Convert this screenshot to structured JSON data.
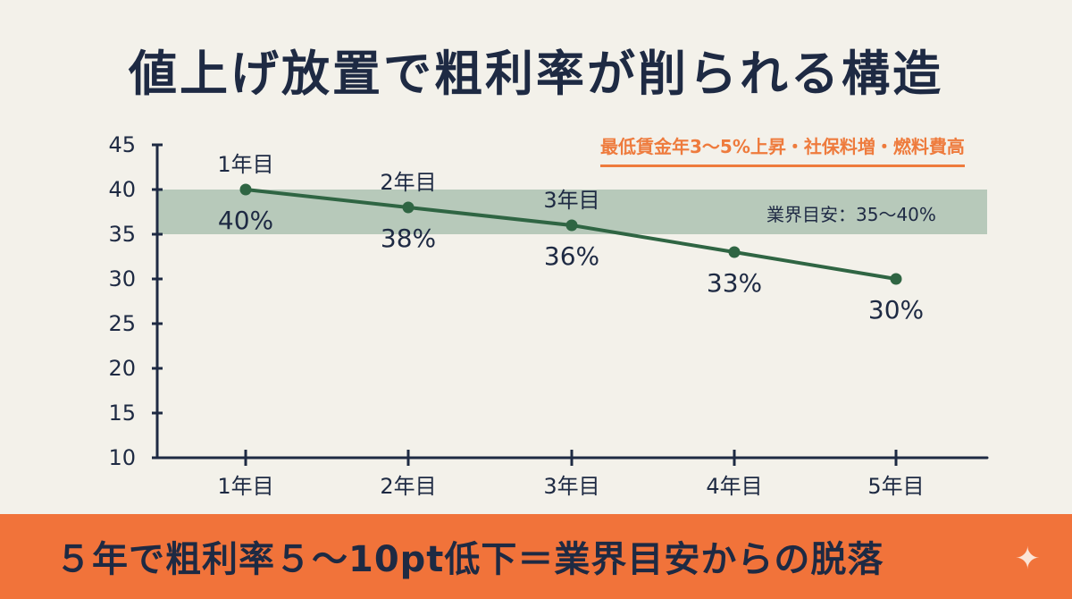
{
  "title": "値上げ放置で粗利率が削られる構造",
  "note": "最低賃金年3～5%上昇・社保料増・燃料費高",
  "footer": "５年で粗利率５～10pt低下＝業界目安からの脱落",
  "chart_data": {
    "type": "line",
    "categories": [
      "1年目",
      "2年目",
      "3年目",
      "4年目",
      "5年目"
    ],
    "values": [
      40,
      38,
      36,
      33,
      30
    ],
    "point_labels": [
      "40%",
      "38%",
      "36%",
      "33%",
      "30%"
    ],
    "point_top_labels": [
      "1年目",
      "2年目",
      "3年目"
    ],
    "ylim": [
      10,
      45
    ],
    "yticks": [
      10,
      15,
      20,
      25,
      30,
      35,
      40,
      45
    ],
    "band": {
      "range": [
        35,
        40
      ],
      "label": "業界目安：35～40%"
    },
    "colors": {
      "line": "#2f6543",
      "band": "#a7bfae",
      "axis": "#1e2a43"
    }
  }
}
